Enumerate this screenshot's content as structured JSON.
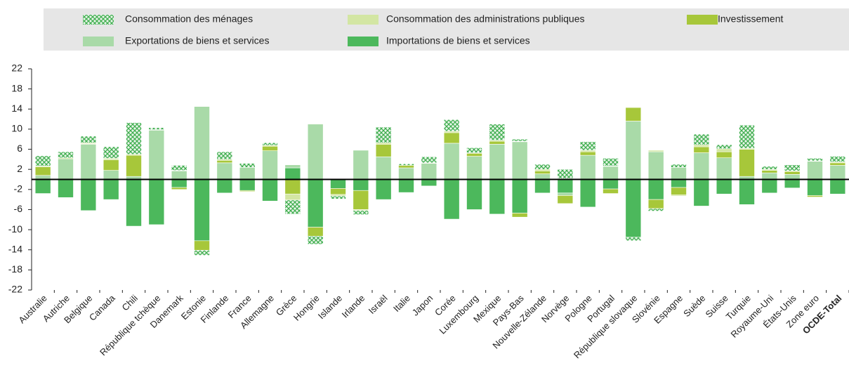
{
  "chart_data": {
    "type": "stacked_bar",
    "categories": [
      "Australie",
      "Autriche",
      "Belgique",
      "Canada",
      "Chili",
      "République tchèque",
      "Danemark",
      "Estonie",
      "Finlande",
      "France",
      "Allemagne",
      "Grèce",
      "Hongrie",
      "Islande",
      "Irlande",
      "Israël",
      "Italie",
      "Japon",
      "Corée",
      "Luxembourg",
      "Mexique",
      "Pays-Bas",
      "Nouvelle-Zélande",
      "Norvège",
      "Pologne",
      "Portugal",
      "République slovaque",
      "Slovénie",
      "Espagne",
      "Suède",
      "Suisse",
      "Turquie",
      "Royaume-Uni",
      "États-Unis",
      "Zone euro",
      "OCDE-Total"
    ],
    "series": [
      {
        "name": "Consommation des ménages",
        "color": "#3fae4f",
        "pattern": "crosshatch",
        "values": [
          2,
          1.2,
          1.3,
          2.3,
          6.3,
          0.4,
          1,
          -1,
          1.5,
          0.8,
          0.5,
          -2.8,
          -1.6,
          -0.6,
          -0.8,
          3.1,
          0.3,
          1.2,
          2.3,
          1,
          3.2,
          0.4,
          1,
          1.8,
          1.7,
          1.5,
          -0.7,
          -0.5,
          0.6,
          2.1,
          0.8,
          4.6,
          0.6,
          1.2,
          0.5,
          1.1
        ]
      },
      {
        "name": "Consommation des administrations publiques",
        "color": "#d3e6a3",
        "values": [
          0.2,
          0.2,
          0.2,
          0.3,
          0.2,
          0.1,
          0.1,
          0,
          0.2,
          0,
          0.2,
          -1.2,
          0.1,
          -0.3,
          -0.2,
          0.3,
          0,
          0.1,
          0.3,
          0.1,
          0.2,
          0.1,
          0.3,
          0.2,
          0.3,
          0.1,
          0.1,
          0.3,
          -0.2,
          0.4,
          0.6,
          0.2,
          0.2,
          0.1,
          0.1,
          0.2
        ]
      },
      {
        "name": "Investissement",
        "color": "#a7c73a",
        "values": [
          1.7,
          0,
          0.1,
          2.1,
          4.2,
          0,
          -0.4,
          -1.9,
          0.5,
          -0.2,
          0.9,
          -2.9,
          -1.8,
          -1.2,
          -3.8,
          2.5,
          0.5,
          0,
          2.1,
          0.6,
          0.6,
          -0.8,
          0.6,
          -1.6,
          0.7,
          -0.9,
          2.7,
          -1.8,
          -1.5,
          1.2,
          1.2,
          5.4,
          0.5,
          0.6,
          -0.3,
          0.5
        ]
      },
      {
        "name": "Exportations de biens et services",
        "color": "#a9daa8",
        "values": [
          0.8,
          4.1,
          7,
          1.8,
          0.6,
          9.8,
          1.7,
          14.5,
          3.3,
          2.4,
          5.7,
          0.6,
          11,
          0,
          5.8,
          4.5,
          2.3,
          3.2,
          7.2,
          4.6,
          7,
          7.5,
          1.1,
          -0.5,
          4.8,
          2.6,
          11.6,
          5.5,
          2.4,
          5.3,
          4.3,
          0.6,
          1.3,
          1,
          3.6,
          2.8
        ]
      },
      {
        "name": "Importations de biens et services",
        "color": "#4cb85c",
        "values": [
          -2.8,
          -3.6,
          -6.2,
          -4,
          -9.3,
          -9,
          -1.6,
          -12.2,
          -2.7,
          -2.2,
          -4.3,
          2.3,
          -9.5,
          -1.8,
          -2.2,
          -4,
          -2.6,
          -1.3,
          -7.9,
          -6,
          -6.9,
          -6.7,
          -2.7,
          -2.7,
          -5.5,
          -1.9,
          -11.5,
          -4,
          -1.6,
          -5.3,
          -2.9,
          -5,
          -2.7,
          -1.7,
          -3.2,
          -2.9
        ]
      }
    ],
    "ylim": [
      -22,
      22
    ],
    "yticks": [
      -22,
      -18,
      -14,
      -10,
      -6,
      -2,
      2,
      6,
      10,
      14,
      18,
      22
    ]
  }
}
